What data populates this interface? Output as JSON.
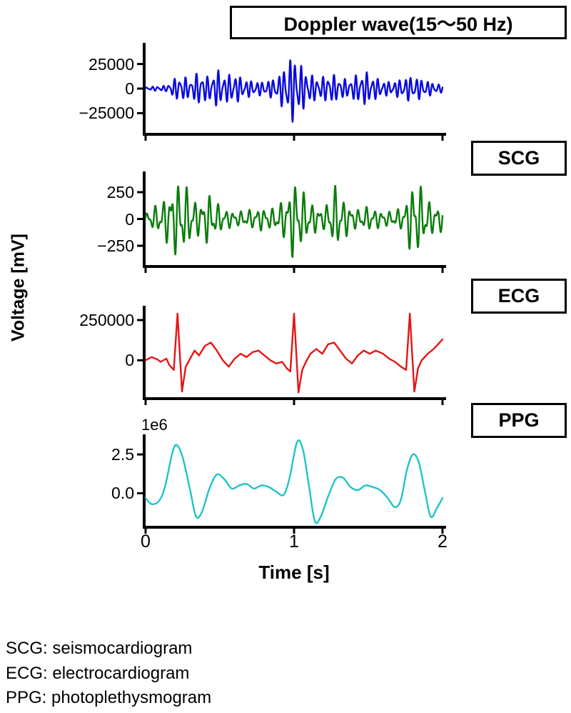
{
  "figure": {
    "title": "Doppler wave(15～50 Hz)",
    "ylabel": "Voltage [mV]",
    "xlabel": "Time [s]",
    "xticklabels": [
      "0",
      "1",
      "2"
    ],
    "offset_text": "1e6",
    "side_labels": [
      "SCG",
      "ECG",
      "PPG"
    ],
    "footnotes": [
      "SCG: seismocardiogram",
      "ECG: electrocardiogram",
      "PPG: photoplethysmogram"
    ]
  },
  "chart_data": [
    {
      "name": "doppler-wave",
      "type": "line",
      "color": "#0a0ae0",
      "xlim": [
        0,
        2
      ],
      "ylim": [
        -45000,
        45000
      ],
      "xticks": [
        0,
        1,
        2
      ],
      "yticks": [
        {
          "value": 25000,
          "label": "25000"
        },
        {
          "value": 0,
          "label": "0"
        },
        {
          "value": -25000,
          "label": "−25000"
        }
      ],
      "synthesis": {
        "carrier_hz": 27,
        "mix": 0.45,
        "carrier2_hz": 41,
        "phase2": 1.3,
        "samples": 1000,
        "envelope": [
          [
            0.0,
            1500
          ],
          [
            0.08,
            2500
          ],
          [
            0.14,
            3000
          ],
          [
            0.18,
            9000
          ],
          [
            0.24,
            14000
          ],
          [
            0.3,
            9000
          ],
          [
            0.36,
            18000
          ],
          [
            0.42,
            12000
          ],
          [
            0.48,
            20000
          ],
          [
            0.54,
            14000
          ],
          [
            0.6,
            16000
          ],
          [
            0.66,
            10000
          ],
          [
            0.72,
            8000
          ],
          [
            0.78,
            7000
          ],
          [
            0.84,
            9000
          ],
          [
            0.9,
            14000
          ],
          [
            0.96,
            30000
          ],
          [
            1.0,
            36000
          ],
          [
            1.06,
            22000
          ],
          [
            1.12,
            14000
          ],
          [
            1.18,
            11000
          ],
          [
            1.24,
            16000
          ],
          [
            1.3,
            12000
          ],
          [
            1.36,
            9000
          ],
          [
            1.42,
            14000
          ],
          [
            1.48,
            18000
          ],
          [
            1.54,
            12000
          ],
          [
            1.6,
            8000
          ],
          [
            1.66,
            7000
          ],
          [
            1.72,
            10000
          ],
          [
            1.78,
            13000
          ],
          [
            1.84,
            11000
          ],
          [
            1.9,
            8000
          ],
          [
            1.96,
            5000
          ],
          [
            2.0,
            4000
          ]
        ]
      }
    },
    {
      "name": "scg",
      "type": "line",
      "color": "#0a7d0a",
      "xlim": [
        0,
        2
      ],
      "ylim": [
        -430,
        430
      ],
      "xticks": [
        0,
        1,
        2
      ],
      "yticks": [
        {
          "value": 250,
          "label": "250"
        },
        {
          "value": 0,
          "label": "0"
        },
        {
          "value": -250,
          "label": "−250"
        }
      ],
      "synthesis": {
        "carrier_hz": 19,
        "mix": 0.6,
        "carrier2_hz": 33,
        "phase2": 0.7,
        "samples": 900,
        "envelope": [
          [
            0.0,
            60
          ],
          [
            0.06,
            120
          ],
          [
            0.12,
            180
          ],
          [
            0.18,
            330
          ],
          [
            0.24,
            380
          ],
          [
            0.3,
            250
          ],
          [
            0.36,
            150
          ],
          [
            0.42,
            260
          ],
          [
            0.48,
            150
          ],
          [
            0.55,
            90
          ],
          [
            0.62,
            70
          ],
          [
            0.7,
            90
          ],
          [
            0.78,
            110
          ],
          [
            0.86,
            100
          ],
          [
            0.94,
            200
          ],
          [
            1.0,
            400
          ],
          [
            1.06,
            260
          ],
          [
            1.12,
            150
          ],
          [
            1.2,
            100
          ],
          [
            1.28,
            320
          ],
          [
            1.34,
            180
          ],
          [
            1.42,
            90
          ],
          [
            1.5,
            120
          ],
          [
            1.58,
            80
          ],
          [
            1.66,
            70
          ],
          [
            1.74,
            120
          ],
          [
            1.8,
            380
          ],
          [
            1.86,
            300
          ],
          [
            1.92,
            150
          ],
          [
            1.98,
            130
          ],
          [
            2.0,
            120
          ]
        ]
      }
    },
    {
      "name": "ecg",
      "type": "line",
      "color": "#e61414",
      "xlim": [
        0,
        2
      ],
      "ylim": [
        -230000,
        330000
      ],
      "xticks": [
        0,
        1,
        2
      ],
      "yticks": [
        {
          "value": 250000,
          "label": "250000"
        },
        {
          "value": 0,
          "label": "0"
        }
      ],
      "smooth": false,
      "points": [
        [
          0.0,
          0
        ],
        [
          0.04,
          20000
        ],
        [
          0.08,
          5000
        ],
        [
          0.1,
          -10000
        ],
        [
          0.14,
          10000
        ],
        [
          0.16,
          -30000
        ],
        [
          0.19,
          -60000
        ],
        [
          0.215,
          290000
        ],
        [
          0.245,
          -195000
        ],
        [
          0.27,
          -40000
        ],
        [
          0.3,
          10000
        ],
        [
          0.33,
          60000
        ],
        [
          0.36,
          30000
        ],
        [
          0.4,
          90000
        ],
        [
          0.44,
          110000
        ],
        [
          0.48,
          60000
        ],
        [
          0.52,
          0
        ],
        [
          0.56,
          -40000
        ],
        [
          0.6,
          10000
        ],
        [
          0.64,
          40000
        ],
        [
          0.68,
          20000
        ],
        [
          0.72,
          50000
        ],
        [
          0.76,
          60000
        ],
        [
          0.8,
          30000
        ],
        [
          0.84,
          0
        ],
        [
          0.88,
          -20000
        ],
        [
          0.92,
          -10000
        ],
        [
          0.95,
          -50000
        ],
        [
          0.975,
          -70000
        ],
        [
          1.0,
          290000
        ],
        [
          1.03,
          -200000
        ],
        [
          1.055,
          -60000
        ],
        [
          1.08,
          -10000
        ],
        [
          1.11,
          40000
        ],
        [
          1.15,
          70000
        ],
        [
          1.19,
          40000
        ],
        [
          1.23,
          100000
        ],
        [
          1.27,
          110000
        ],
        [
          1.31,
          60000
        ],
        [
          1.35,
          10000
        ],
        [
          1.39,
          -20000
        ],
        [
          1.43,
          30000
        ],
        [
          1.47,
          60000
        ],
        [
          1.51,
          40000
        ],
        [
          1.55,
          60000
        ],
        [
          1.6,
          40000
        ],
        [
          1.64,
          10000
        ],
        [
          1.68,
          -10000
        ],
        [
          1.72,
          -40000
        ],
        [
          1.755,
          -60000
        ],
        [
          1.78,
          290000
        ],
        [
          1.81,
          -195000
        ],
        [
          1.835,
          -50000
        ],
        [
          1.86,
          0
        ],
        [
          1.9,
          40000
        ],
        [
          1.94,
          70000
        ],
        [
          1.97,
          100000
        ],
        [
          2.0,
          130000
        ]
      ]
    },
    {
      "name": "ppg",
      "type": "line",
      "color": "#1fc4c4",
      "xlim": [
        0,
        2
      ],
      "ylim": [
        -2100000,
        3700000
      ],
      "xticks": [
        0,
        1,
        2
      ],
      "yticks": [
        {
          "value": 2500000,
          "label": "2.5"
        },
        {
          "value": 0,
          "label": "0.0"
        }
      ],
      "smooth": true,
      "points": [
        [
          0.0,
          -300000
        ],
        [
          0.04,
          -700000
        ],
        [
          0.09,
          -500000
        ],
        [
          0.13,
          400000
        ],
        [
          0.18,
          2600000
        ],
        [
          0.21,
          3100000
        ],
        [
          0.25,
          2300000
        ],
        [
          0.3,
          200000
        ],
        [
          0.34,
          -1500000
        ],
        [
          0.38,
          -1200000
        ],
        [
          0.43,
          300000
        ],
        [
          0.48,
          1200000
        ],
        [
          0.53,
          900000
        ],
        [
          0.58,
          300000
        ],
        [
          0.63,
          500000
        ],
        [
          0.68,
          600000
        ],
        [
          0.73,
          300000
        ],
        [
          0.78,
          500000
        ],
        [
          0.83,
          400000
        ],
        [
          0.88,
          100000
        ],
        [
          0.93,
          -100000
        ],
        [
          0.97,
          1000000
        ],
        [
          1.02,
          3300000
        ],
        [
          1.06,
          2800000
        ],
        [
          1.1,
          500000
        ],
        [
          1.14,
          -1800000
        ],
        [
          1.18,
          -1500000
        ],
        [
          1.23,
          -200000
        ],
        [
          1.28,
          900000
        ],
        [
          1.33,
          1000000
        ],
        [
          1.38,
          400000
        ],
        [
          1.43,
          200000
        ],
        [
          1.48,
          500000
        ],
        [
          1.53,
          400000
        ],
        [
          1.58,
          200000
        ],
        [
          1.63,
          -300000
        ],
        [
          1.68,
          -900000
        ],
        [
          1.72,
          -400000
        ],
        [
          1.76,
          1500000
        ],
        [
          1.8,
          2500000
        ],
        [
          1.84,
          2000000
        ],
        [
          1.88,
          200000
        ],
        [
          1.92,
          -1500000
        ],
        [
          1.96,
          -1000000
        ],
        [
          2.0,
          -300000
        ]
      ]
    }
  ]
}
